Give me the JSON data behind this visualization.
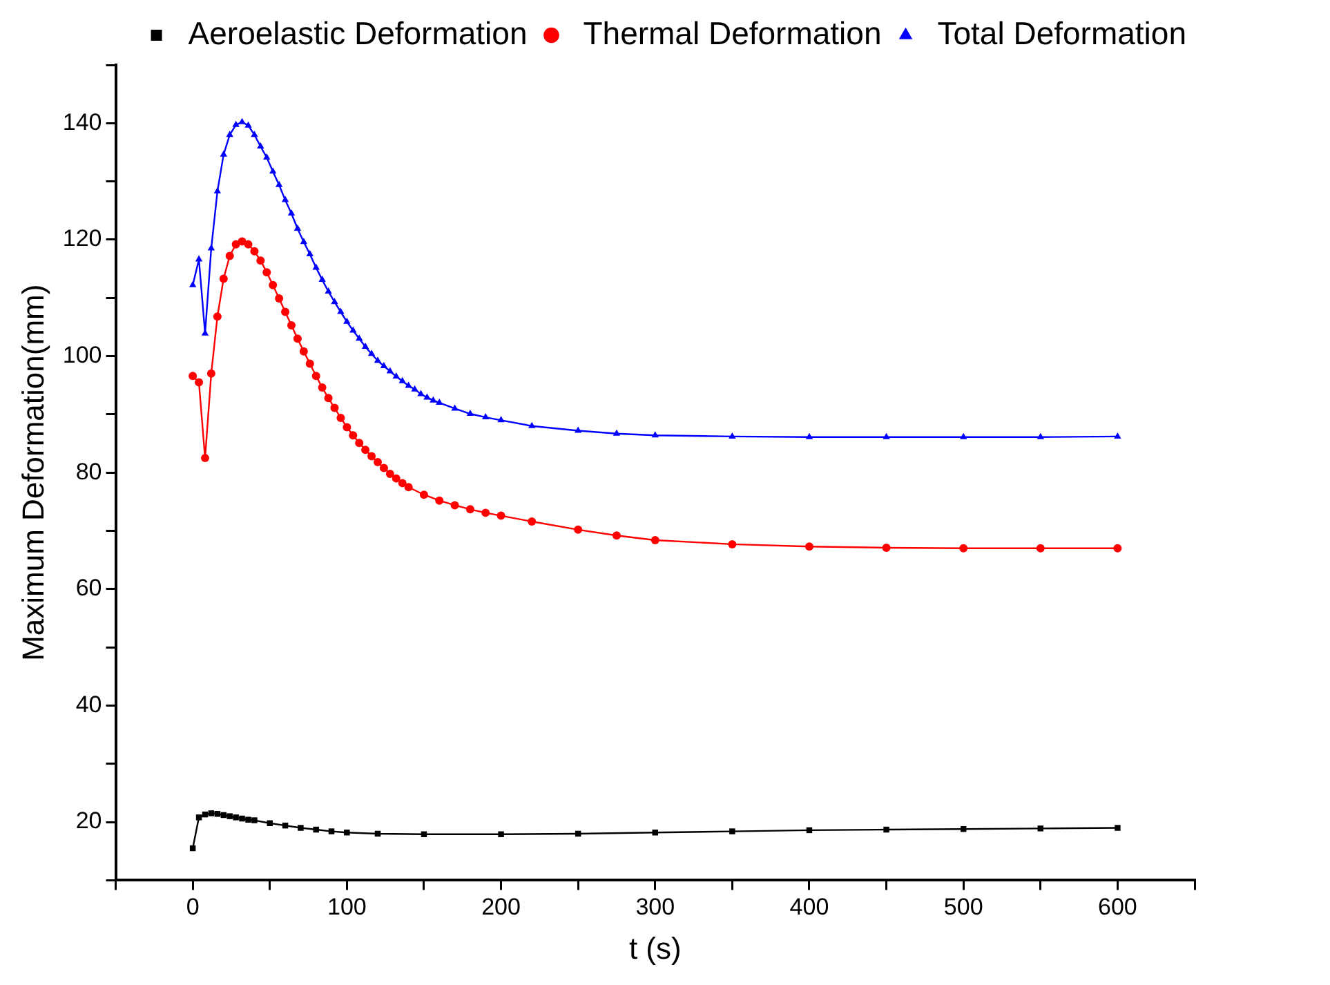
{
  "chart_data": {
    "type": "line",
    "xlabel": "t (s)",
    "ylabel": "Maximum Deformation(mm)",
    "xlim": [
      -50,
      650
    ],
    "ylim": [
      10,
      150
    ],
    "xticks": [
      {
        "value": -50,
        "label": null
      },
      0,
      {
        "value": 50,
        "label": null
      },
      100,
      {
        "value": 150,
        "label": null
      },
      200,
      {
        "value": 250,
        "label": null
      },
      300,
      {
        "value": 350,
        "label": null
      },
      400,
      {
        "value": 450,
        "label": null
      },
      500,
      {
        "value": 550,
        "label": null
      },
      600,
      {
        "value": 650,
        "label": null
      }
    ],
    "yticks": [
      {
        "value": 10,
        "label": null
      },
      20,
      {
        "value": 30,
        "label": null
      },
      40,
      {
        "value": 50,
        "label": null
      },
      60,
      {
        "value": 70,
        "label": null
      },
      80,
      {
        "value": 90,
        "label": null
      },
      100,
      {
        "value": 110,
        "label": null
      },
      120,
      {
        "value": 130,
        "label": null
      },
      140,
      {
        "value": 150,
        "label": null
      }
    ],
    "grid": false,
    "legend": "top right",
    "line_style": "solid",
    "series": [
      {
        "name": "Aeroelastic Deformation",
        "color": "#000000",
        "marker": "square",
        "x": [
          0,
          4,
          8,
          12,
          16,
          20,
          24,
          28,
          32,
          36,
          40,
          50,
          60,
          70,
          80,
          90,
          100,
          120,
          150,
          200,
          250,
          300,
          350,
          400,
          450,
          500,
          550,
          600
        ],
        "values": [
          15.5,
          20.8,
          21.3,
          21.5,
          21.4,
          21.2,
          21.0,
          20.8,
          20.6,
          20.4,
          20.3,
          19.8,
          19.4,
          19.0,
          18.7,
          18.4,
          18.2,
          18.0,
          17.9,
          17.9,
          18.0,
          18.2,
          18.4,
          18.6,
          18.7,
          18.8,
          18.9,
          19.0
        ]
      },
      {
        "name": "Thermal Deformation",
        "color": "#ff0000",
        "marker": "circle",
        "x": [
          0,
          4,
          8,
          12,
          16,
          20,
          24,
          28,
          32,
          36,
          40,
          44,
          48,
          52,
          56,
          60,
          64,
          68,
          72,
          76,
          80,
          84,
          88,
          92,
          96,
          100,
          104,
          108,
          112,
          116,
          120,
          124,
          128,
          132,
          136,
          140,
          150,
          160,
          170,
          180,
          190,
          200,
          220,
          250,
          275,
          300,
          350,
          400,
          450,
          500,
          550,
          600
        ],
        "values": [
          96.6,
          95.5,
          82.5,
          97.0,
          106.8,
          113.3,
          117.2,
          119.2,
          119.7,
          119.2,
          118.0,
          116.4,
          114.4,
          112.2,
          109.9,
          107.6,
          105.3,
          103.0,
          100.8,
          98.7,
          96.6,
          94.6,
          92.8,
          91.1,
          89.4,
          87.8,
          86.4,
          85.1,
          83.9,
          82.8,
          81.8,
          80.8,
          79.8,
          79.0,
          78.2,
          77.5,
          76.2,
          75.2,
          74.4,
          73.7,
          73.1,
          72.6,
          71.6,
          70.2,
          69.2,
          68.4,
          67.7,
          67.3,
          67.1,
          67.0,
          67.0,
          67.0
        ]
      },
      {
        "name": "Total Deformation",
        "color": "#0000ff",
        "marker": "triangle",
        "x": [
          0,
          4,
          8,
          12,
          16,
          20,
          24,
          28,
          32,
          36,
          40,
          44,
          48,
          52,
          56,
          60,
          64,
          68,
          72,
          76,
          80,
          84,
          88,
          92,
          96,
          100,
          104,
          108,
          112,
          116,
          120,
          124,
          128,
          132,
          136,
          140,
          144,
          148,
          152,
          156,
          160,
          170,
          180,
          190,
          200,
          220,
          250,
          275,
          300,
          350,
          400,
          450,
          500,
          550,
          600
        ],
        "values": [
          112.2,
          116.6,
          103.9,
          118.5,
          128.3,
          134.6,
          138.0,
          139.7,
          140.2,
          139.6,
          138.0,
          136.0,
          134.1,
          131.7,
          129.4,
          126.8,
          124.5,
          121.9,
          119.6,
          117.5,
          115.2,
          113.1,
          111.1,
          109.3,
          107.6,
          105.9,
          104.4,
          103.0,
          101.6,
          100.4,
          99.2,
          98.3,
          97.4,
          96.5,
          95.7,
          94.9,
          94.3,
          93.5,
          92.9,
          92.4,
          92.0,
          91.0,
          90.1,
          89.5,
          89.0,
          88.0,
          87.2,
          86.7,
          86.4,
          86.2,
          86.1,
          86.1,
          86.1,
          86.1,
          86.2
        ]
      }
    ]
  }
}
